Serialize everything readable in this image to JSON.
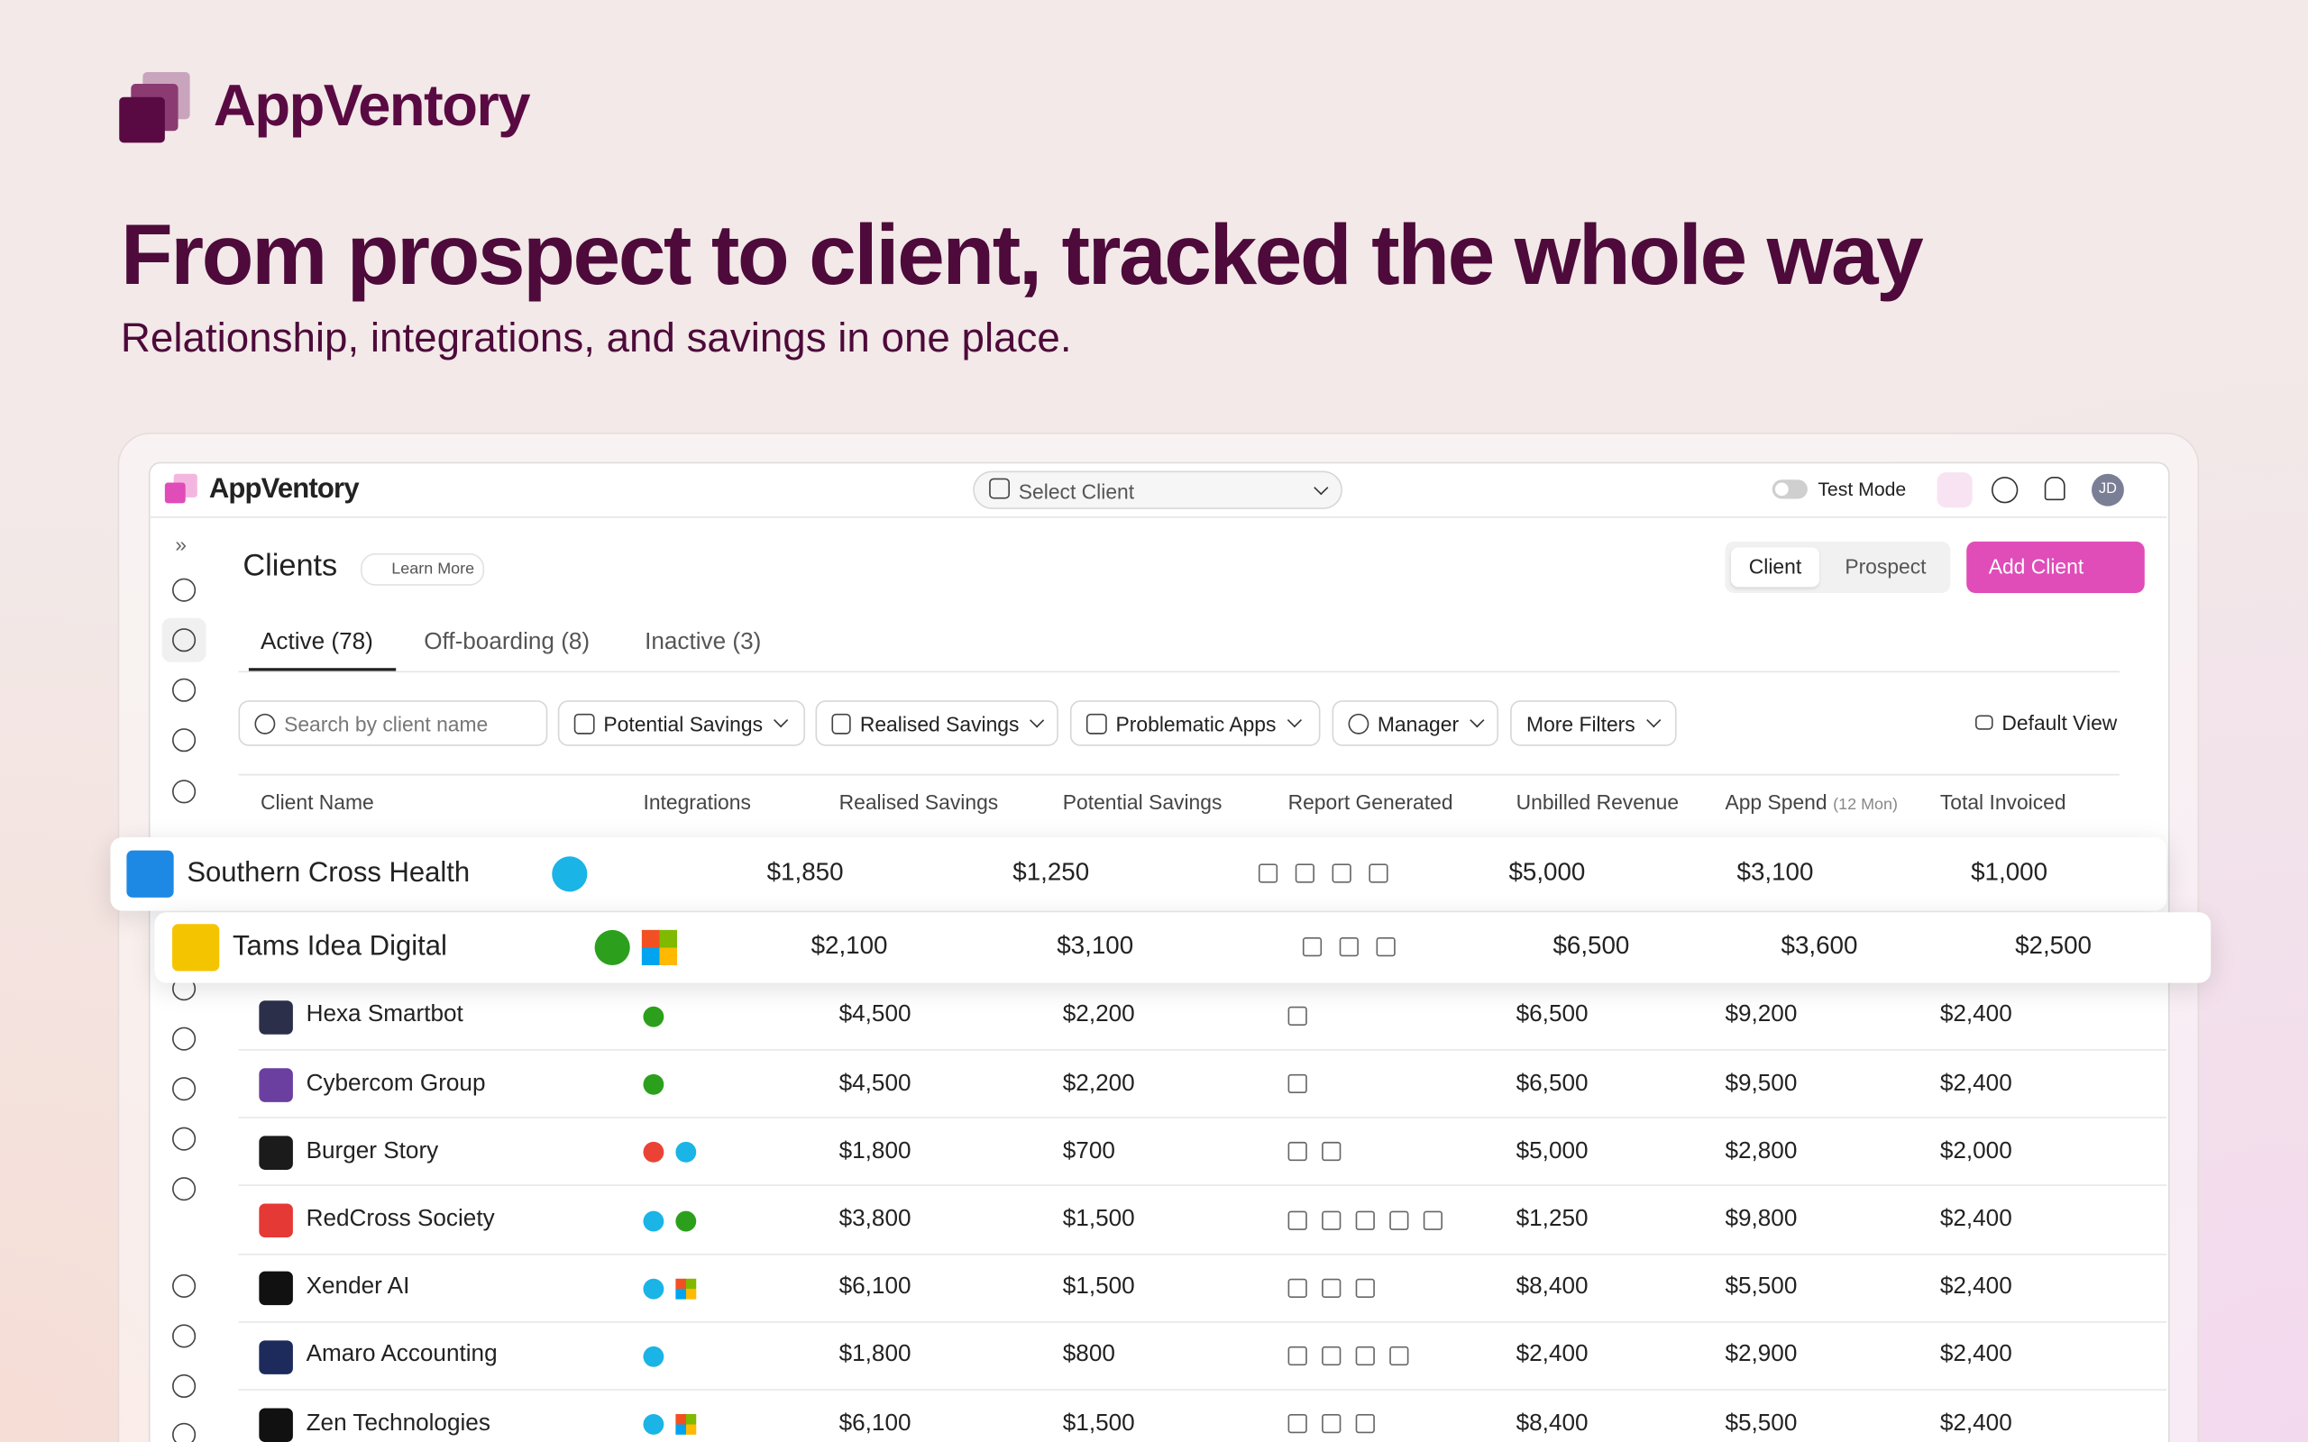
{
  "brand": "AppVentory",
  "hero": {
    "title": "From prospect to client, tracked the whole way",
    "subtitle": "Relationship, integrations, and savings in one place."
  },
  "app": {
    "brand": "AppVentory",
    "client_select": "Select Client",
    "test_mode": "Test Mode",
    "avatar": "JD"
  },
  "page": {
    "title": "Clients",
    "learn_more": "Learn More",
    "toggle": [
      "Client",
      "Prospect"
    ],
    "add_button": "Add Client"
  },
  "tabs": [
    "Active (78)",
    "Off-boarding (8)",
    "Inactive (3)"
  ],
  "search_placeholder": "Search by client name",
  "filters": [
    "Potential Savings",
    "Realised Savings",
    "Problematic Apps",
    "Manager",
    "More Filters"
  ],
  "default_view": "Default View",
  "table": {
    "columns": [
      "Client Name",
      "Integrations",
      "Realised Savings",
      "Potential Savings",
      "Report Generated",
      "Unbilled Revenue",
      "App Spend",
      "Total Invoiced"
    ],
    "app_spend_note": "(12 Mon)",
    "rows": [
      [
        "Southern Cross Health",
        "$1,850",
        "$1,250",
        "$5,000",
        "$3,100",
        "$1,000"
      ],
      [
        "Tams Idea Digital",
        "$2,100",
        "$3,100",
        "$6,500",
        "$3,600",
        "$2,500"
      ],
      [
        "Hexa Smartbot",
        "$4,500",
        "$2,200",
        "$6,500",
        "$9,200",
        "$2,400"
      ],
      [
        "Cybercom Group",
        "$4,500",
        "$2,200",
        "$6,500",
        "$9,500",
        "$2,400"
      ],
      [
        "Burger Story",
        "$1,800",
        "$700",
        "$5,000",
        "$2,800",
        "$2,000"
      ],
      [
        "RedCross Society",
        "$3,800",
        "$1,500",
        "$1,250",
        "$9,800",
        "$2,400"
      ],
      [
        "Xender AI",
        "$6,100",
        "$1,500",
        "$8,400",
        "$5,500",
        "$2,400"
      ],
      [
        "Amaro Accounting",
        "$1,800",
        "$800",
        "$2,400",
        "$2,900",
        "$2,400"
      ],
      [
        "Zen Technologies",
        "$6,100",
        "$1,500",
        "$8,400",
        "$5,500",
        "$2,400"
      ]
    ]
  }
}
